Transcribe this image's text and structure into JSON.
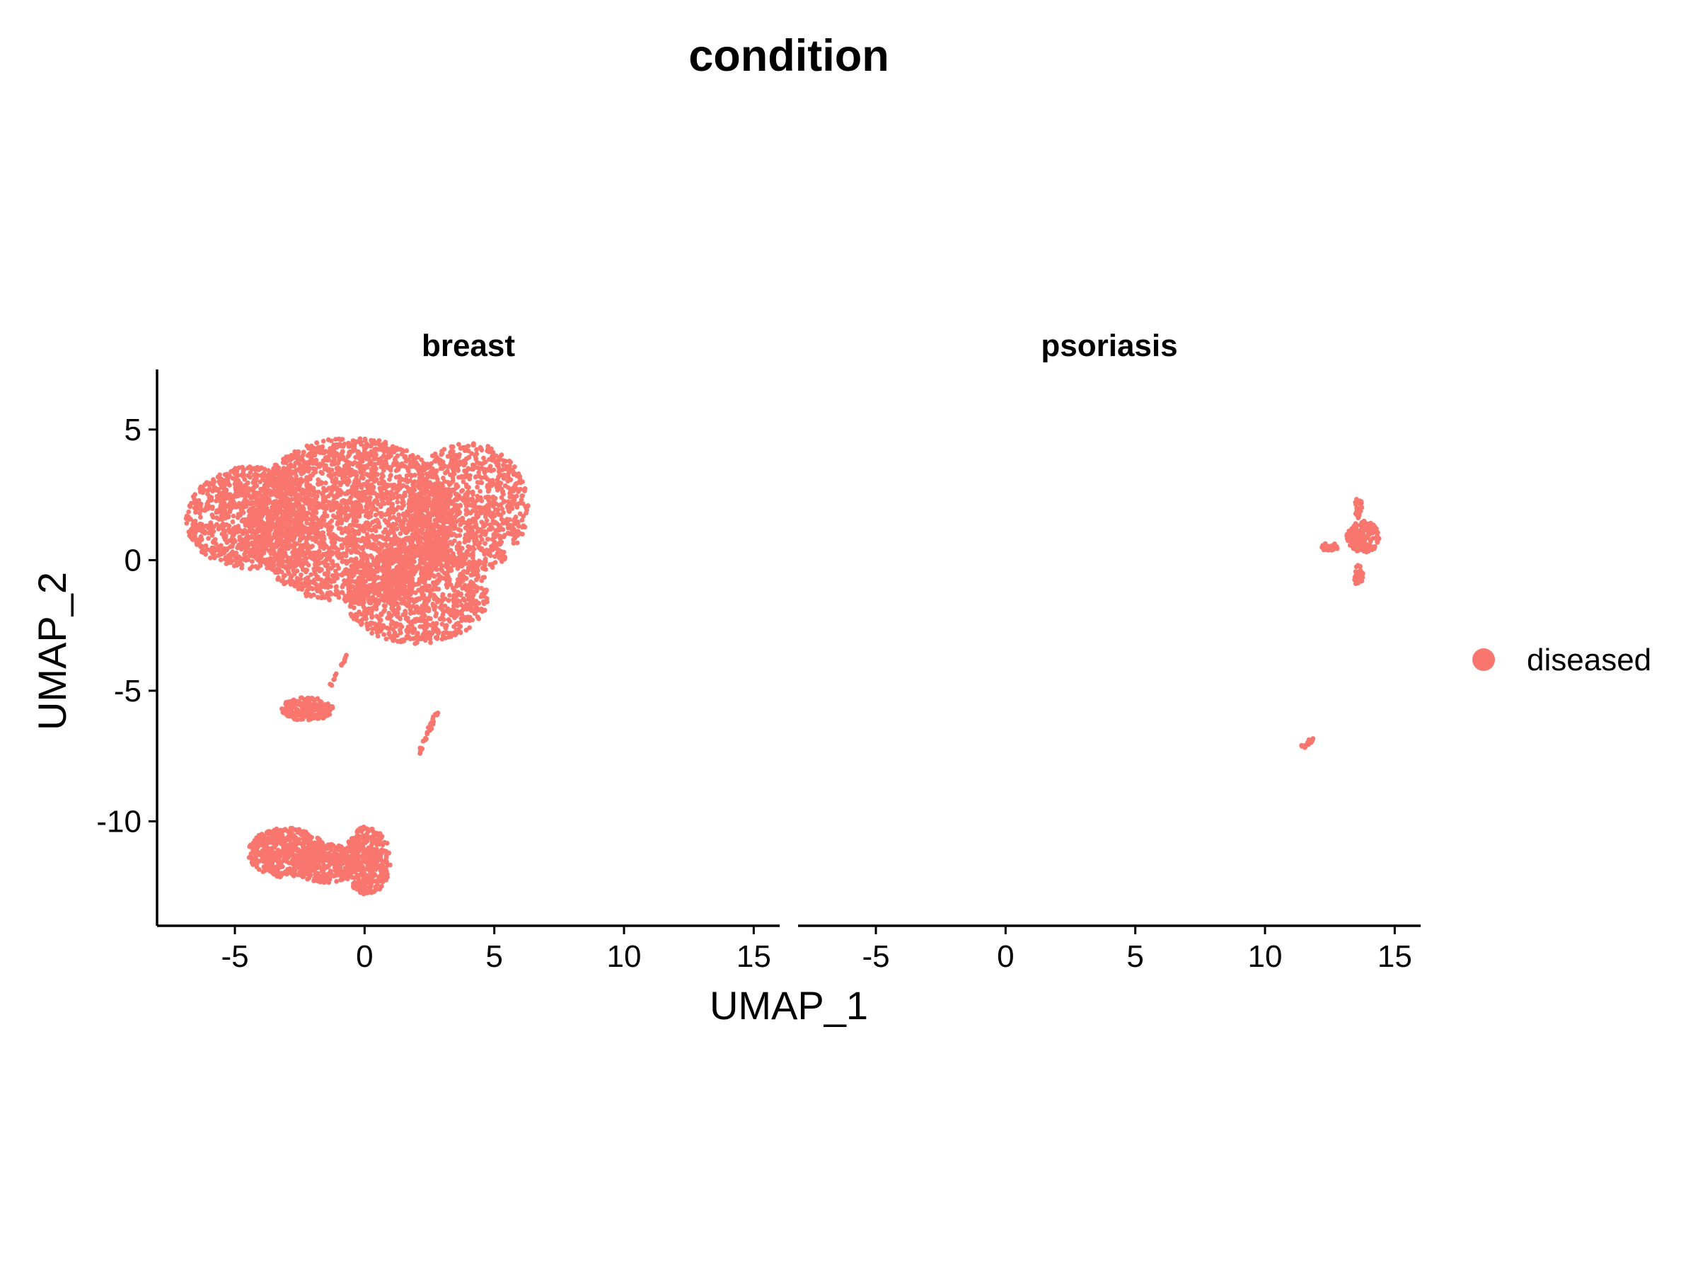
{
  "chart_data": {
    "type": "scatter",
    "title": "condition",
    "xlabel": "UMAP_1",
    "ylabel": "UMAP_2",
    "xlim": [
      -8,
      16
    ],
    "ylim": [
      -14,
      7.3
    ],
    "x_ticks": [
      -5,
      0,
      5,
      10,
      15
    ],
    "x_tick_labels": [
      "-5",
      "0",
      "5",
      "10",
      "15"
    ],
    "y_ticks": [
      5,
      0,
      -5,
      -10
    ],
    "y_tick_labels": [
      "5",
      "0",
      "-5",
      "-10"
    ],
    "grid": false,
    "legend": {
      "position": "right",
      "entries": [
        {
          "label": "diseased",
          "color": "#F8766D"
        }
      ]
    },
    "point_color": "#F8766D",
    "panels": [
      {
        "label": "breast",
        "clusters": [
          {
            "shape": "blob",
            "cx": -0.5,
            "cy": 1.5,
            "rx": 4.0,
            "ry": 3.2,
            "n": 2600
          },
          {
            "shape": "blob",
            "cx": -4.3,
            "cy": 1.6,
            "rx": 2.6,
            "ry": 2.0,
            "n": 1000
          },
          {
            "shape": "blob",
            "cx": 4.0,
            "cy": 2.0,
            "rx": 2.3,
            "ry": 2.5,
            "n": 1000
          },
          {
            "shape": "blob",
            "cx": 2.0,
            "cy": -1.3,
            "rx": 2.8,
            "ry": 1.9,
            "n": 1000
          },
          {
            "shape": "blob",
            "cx": -2.2,
            "cy": -5.7,
            "rx": 1.0,
            "ry": 0.45,
            "n": 180
          },
          {
            "shape": "blob",
            "cx": -3.0,
            "cy": -11.2,
            "rx": 1.5,
            "ry": 0.95,
            "n": 520
          },
          {
            "shape": "blob",
            "cx": 0.1,
            "cy": -11.5,
            "rx": 0.9,
            "ry": 1.3,
            "n": 380
          },
          {
            "shape": "blob",
            "cx": -1.5,
            "cy": -11.6,
            "rx": 1.3,
            "ry": 0.75,
            "n": 300
          },
          {
            "shape": "line",
            "x1": -1.3,
            "y1": -4.8,
            "x2": -0.6,
            "y2": -3.5,
            "n": 14
          },
          {
            "shape": "line",
            "x1": 2.1,
            "y1": -7.4,
            "x2": 2.8,
            "y2": -5.8,
            "n": 28
          }
        ]
      },
      {
        "label": "psoriasis",
        "clusters": [
          {
            "shape": "blob",
            "cx": 13.8,
            "cy": 0.9,
            "rx": 0.65,
            "ry": 0.6,
            "n": 170
          },
          {
            "shape": "blob",
            "cx": 12.5,
            "cy": 0.5,
            "rx": 0.35,
            "ry": 0.15,
            "n": 35
          },
          {
            "shape": "blob",
            "cx": 13.6,
            "cy": 2.0,
            "rx": 0.15,
            "ry": 0.4,
            "n": 25
          },
          {
            "shape": "blob",
            "cx": 13.6,
            "cy": -0.6,
            "rx": 0.2,
            "ry": 0.4,
            "n": 25
          },
          {
            "shape": "line",
            "x1": 11.4,
            "y1": -7.2,
            "x2": 11.9,
            "y2": -6.8,
            "n": 14
          }
        ]
      }
    ]
  }
}
